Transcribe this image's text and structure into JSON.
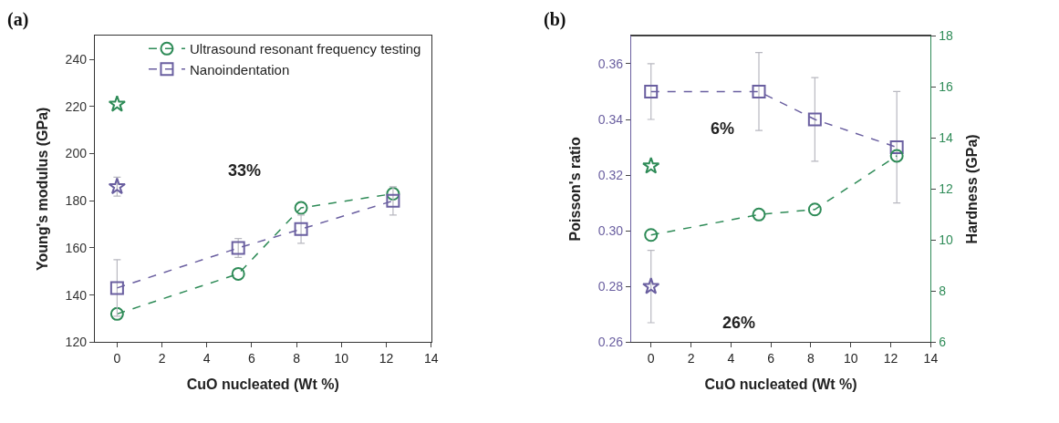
{
  "chart_data": [
    {
      "type": "line",
      "title": "(a)",
      "xlabel": "CuO nucleated (Wt %)",
      "ylabel": "Young's modulus (GPa)",
      "xlim": [
        -1,
        14
      ],
      "xticks": [
        0,
        2,
        4,
        6,
        8,
        10,
        12,
        14
      ],
      "ylim": [
        120,
        250
      ],
      "yticks": [
        120,
        140,
        160,
        180,
        200,
        220,
        240
      ],
      "legend": "top right",
      "line_style": "dashed",
      "annotations": [
        "33%"
      ],
      "series": [
        {
          "name": "Ultrasound resonant frequency testing",
          "color": "#2e8b57",
          "marker": "circle",
          "x": [
            0,
            5.4,
            8.2,
            12.3
          ],
          "values": [
            132,
            149,
            177,
            183
          ]
        },
        {
          "name": "Nanoindentation",
          "color": "#6a5fa0",
          "marker": "square",
          "x": [
            0,
            5.4,
            8.2,
            12.3
          ],
          "values": [
            143,
            160,
            168,
            180
          ],
          "errors": [
            12,
            4,
            6,
            6
          ]
        },
        {
          "type": "scatter",
          "color": "#2e8b57",
          "marker": "star",
          "x": [
            0
          ],
          "values": [
            221
          ]
        },
        {
          "type": "scatter",
          "color": "#6a5fa0",
          "marker": "star",
          "x": [
            0
          ],
          "values": [
            186
          ],
          "errors": [
            4
          ]
        }
      ]
    },
    {
      "type": "line",
      "title": "(b)",
      "xlabel": "CuO nucleated (Wt %)",
      "ylabel": "Poisson's ratio",
      "y2label": "Hardness (GPa)",
      "xlim": [
        -1,
        14
      ],
      "xticks": [
        0,
        2,
        4,
        6,
        8,
        10,
        12,
        14
      ],
      "ylim": [
        0.26,
        0.37
      ],
      "yticks": [
        {
          "value": 0.26,
          "label": "0.26"
        },
        {
          "value": 0.28,
          "label": "0.28"
        },
        {
          "value": 0.3,
          "label": "0.30"
        },
        {
          "value": 0.32,
          "label": "0.32"
        },
        {
          "value": 0.34,
          "label": "0.34"
        },
        {
          "value": 0.36,
          "label": "0.36"
        }
      ],
      "y2lim": [
        6,
        18
      ],
      "y2ticks": [
        6,
        8,
        10,
        12,
        14,
        16,
        18
      ],
      "legend": false,
      "line_style": "dashed",
      "annotations": [
        "6%",
        "26%"
      ],
      "series": [
        {
          "color": "#6a5fa0",
          "marker": "square",
          "x": [
            0,
            5.4,
            8.2,
            12.3
          ],
          "values": [
            0.35,
            0.35,
            0.34,
            0.33
          ],
          "errors": [
            0.01,
            0.014,
            0.015,
            0.02
          ]
        },
        {
          "color": "#2e8b57",
          "marker": "circle",
          "axis": "y2",
          "x": [
            0,
            5.4,
            8.2,
            12.3
          ],
          "values": [
            10.2,
            11.0,
            11.2,
            13.3
          ]
        },
        {
          "type": "scatter",
          "color": "#2e8b57",
          "marker": "star",
          "axis": "y2",
          "x": [
            0
          ],
          "values": [
            12.9
          ]
        },
        {
          "type": "scatter",
          "color": "#6a5fa0",
          "marker": "star",
          "x": [
            0
          ],
          "values": [
            0.28
          ],
          "errors": [
            0.013
          ]
        }
      ]
    }
  ]
}
